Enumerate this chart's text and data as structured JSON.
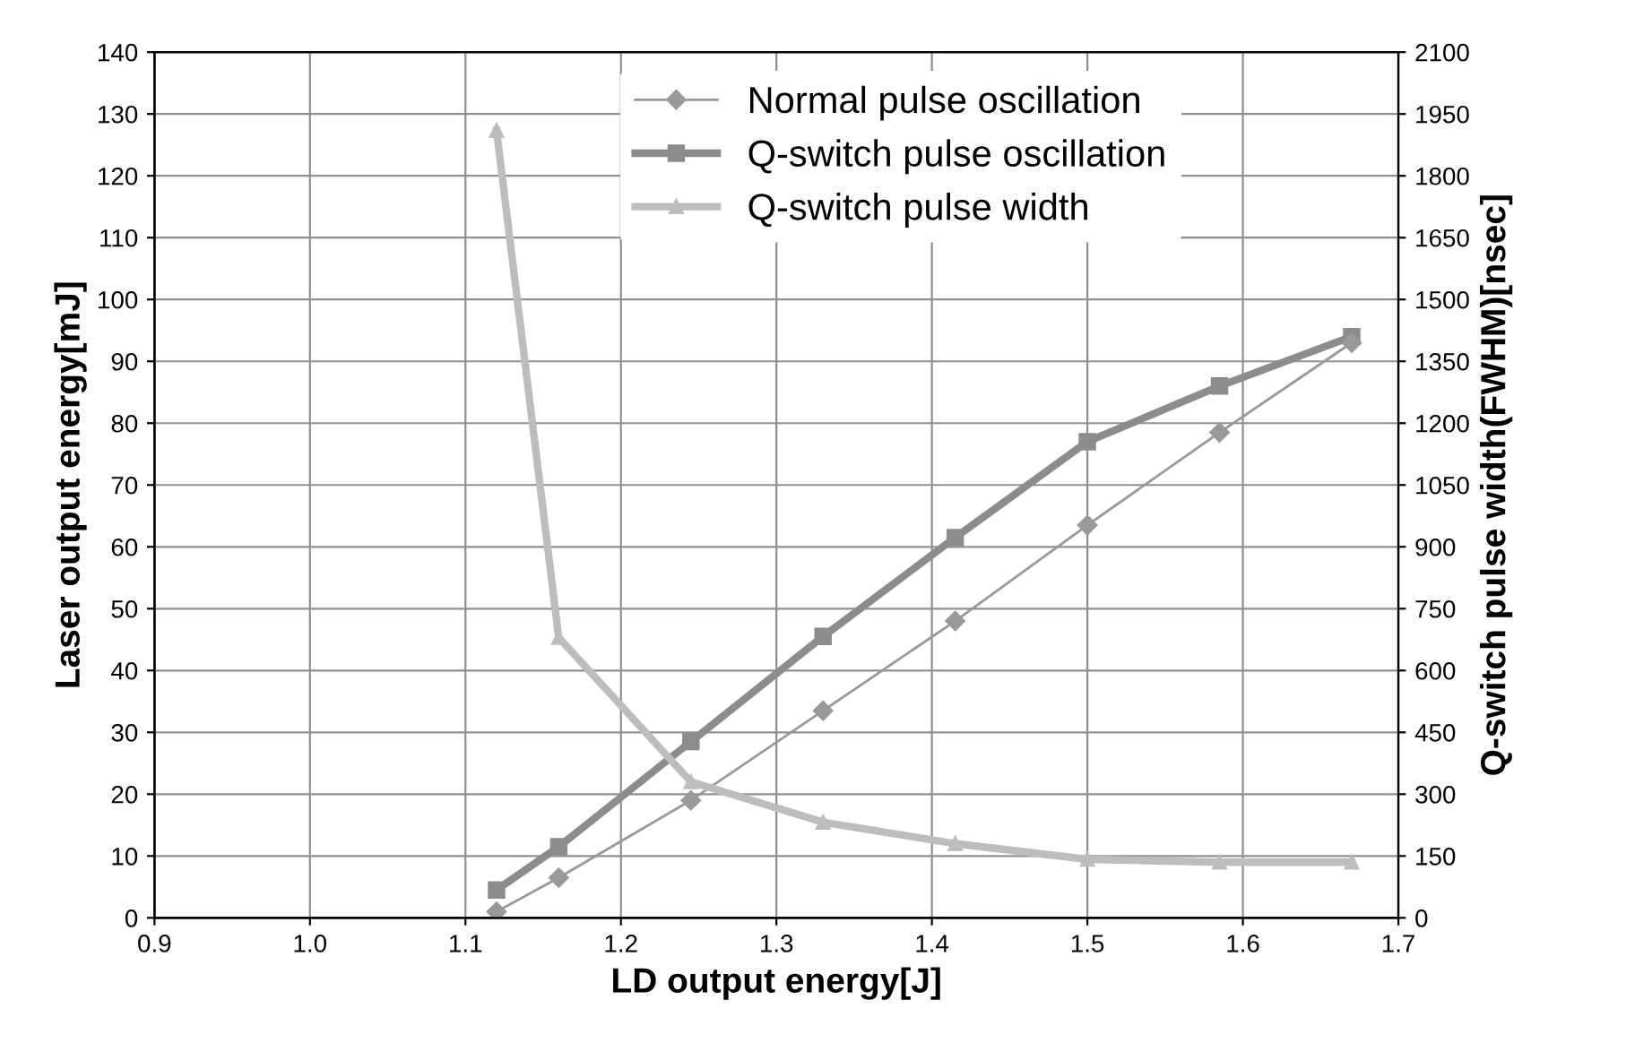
{
  "chart_data": {
    "type": "line",
    "xlabel": "LD output energy[J]",
    "ylabel": "Laser output energy[mJ]",
    "y2label": "Q-switch pulse width(FWHM)[nsec]",
    "x": [
      1.12,
      1.16,
      1.245,
      1.33,
      1.415,
      1.5,
      1.585,
      1.67
    ],
    "series": [
      {
        "name": "Normal pulse oscillation",
        "color": "#999999",
        "marker": "diamond",
        "values": [
          1,
          6.5,
          19,
          33.5,
          48,
          63.5,
          78.5,
          93
        ]
      },
      {
        "name": "Q-switch pulse oscillation",
        "color": "#8c8c8c",
        "marker": "square",
        "values": [
          4.5,
          11.5,
          28.5,
          45.5,
          61.5,
          77,
          86,
          94
        ]
      },
      {
        "name": "Q-switch pulse width",
        "color": "#bdbdbd",
        "marker": "triangle",
        "axis": "y2",
        "values": [
          1910,
          680,
          330,
          232,
          180,
          142,
          135,
          135
        ]
      }
    ],
    "xlim": [
      0.9,
      1.7
    ],
    "xticks": [
      {
        "value": 0.9,
        "label": "0.9"
      },
      {
        "value": 1.0,
        "label": "1.0"
      },
      {
        "value": 1.1,
        "label": "1.1"
      },
      {
        "value": 1.2,
        "label": "1.2"
      },
      {
        "value": 1.3,
        "label": "1.3"
      },
      {
        "value": 1.4,
        "label": "1.4"
      },
      {
        "value": 1.5,
        "label": "1.5"
      },
      {
        "value": 1.6,
        "label": "1.6"
      },
      {
        "value": 1.7,
        "label": "1.7"
      }
    ],
    "ylim": [
      0,
      140
    ],
    "yticks": [
      0,
      10,
      20,
      30,
      40,
      50,
      60,
      70,
      80,
      90,
      100,
      110,
      120,
      130,
      140
    ],
    "y2lim": [
      0,
      2100
    ],
    "y2ticks": [
      0,
      150,
      300,
      450,
      600,
      750,
      900,
      1050,
      1200,
      1350,
      1500,
      1650,
      1800,
      1950,
      2100
    ],
    "grid": true,
    "legend": "top",
    "line_style": "solid"
  }
}
